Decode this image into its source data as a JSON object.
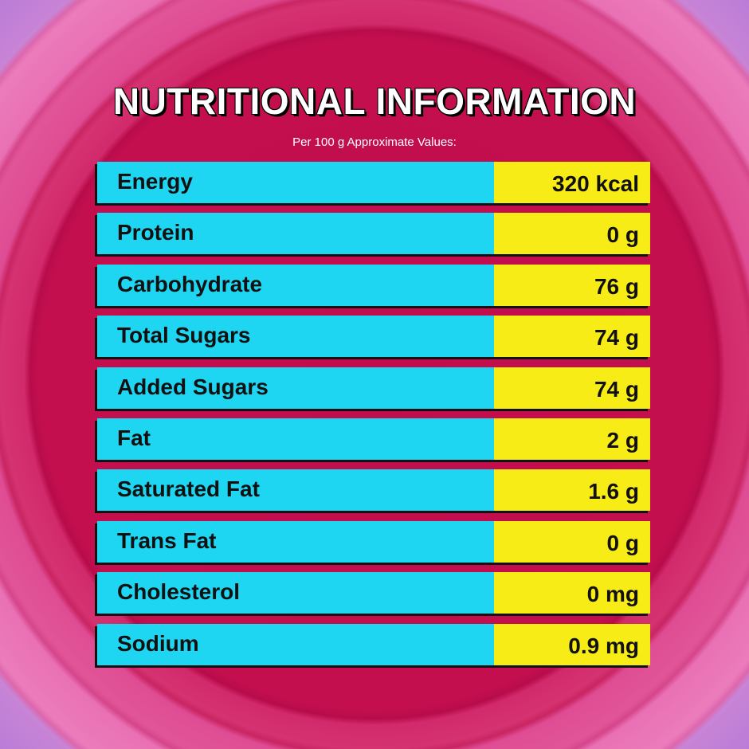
{
  "header": {
    "title": "NUTRITIONAL INFORMATION",
    "subtitle": "Per 100 g Approximate Values:"
  },
  "table": {
    "rows": [
      [
        "Energy",
        "320 kcal"
      ],
      [
        "Protein",
        "0 g"
      ],
      [
        "Carbohydrate",
        "76 g"
      ],
      [
        "Total Sugars",
        "74 g"
      ],
      [
        "Added Sugars",
        "74 g"
      ],
      [
        "Fat",
        "2 g"
      ],
      [
        "Saturated Fat",
        "1.6 g"
      ],
      [
        "Trans Fat",
        "0 g"
      ],
      [
        "Cholesterol",
        "0 mg"
      ],
      [
        "Sodium",
        "0.9 mg"
      ]
    ]
  }
}
